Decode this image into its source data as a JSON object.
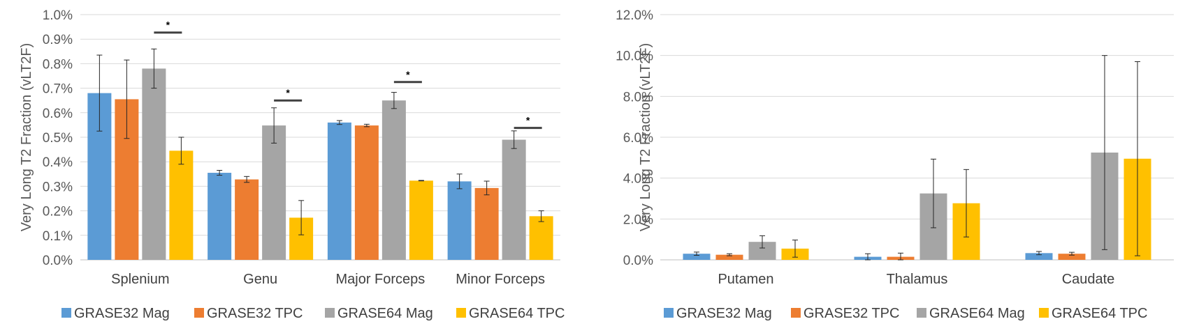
{
  "colors": {
    "grase32_mag": "#5B9BD5",
    "grase32_tpc": "#ED7D31",
    "grase64_mag": "#A5A5A5",
    "grase64_tpc": "#FFC000",
    "grid": "#D9D9D9",
    "axis": "#BFBFBF",
    "error": "#262626"
  },
  "chart_data": [
    {
      "type": "bar",
      "title": "",
      "ylabel": "Very Long T2 Fraction (vLT2F)",
      "xlabel": "",
      "ylim": [
        0,
        1.0
      ],
      "ytick_step": 0.1,
      "ytick_labels": [
        "0.0%",
        "0.1%",
        "0.2%",
        "0.3%",
        "0.4%",
        "0.5%",
        "0.6%",
        "0.7%",
        "0.8%",
        "0.9%",
        "1.0%"
      ],
      "categories": [
        "Splenium",
        "Genu",
        "Major Forceps",
        "Minor Forceps"
      ],
      "series": [
        {
          "name": "GRASE32 Mag",
          "values": [
            0.68,
            0.355,
            0.56,
            0.32
          ],
          "errors": [
            0.155,
            0.01,
            0.008,
            0.03
          ]
        },
        {
          "name": "GRASE32 TPC",
          "values": [
            0.655,
            0.328,
            0.548,
            0.293
          ],
          "errors": [
            0.16,
            0.012,
            0.005,
            0.028
          ]
        },
        {
          "name": "GRASE64 Mag",
          "values": [
            0.78,
            0.548,
            0.65,
            0.49
          ],
          "errors": [
            0.08,
            0.072,
            0.033,
            0.036
          ]
        },
        {
          "name": "GRASE64 TPC",
          "values": [
            0.445,
            0.172,
            0.323,
            0.178
          ],
          "errors": [
            0.055,
            0.07,
            0.001,
            0.022
          ]
        }
      ],
      "significance": [
        {
          "category": "Splenium",
          "label": "*",
          "level": 0.927
        },
        {
          "category": "Genu",
          "label": "*",
          "level": 0.65
        },
        {
          "category": "Major Forceps",
          "label": "*",
          "level": 0.725
        },
        {
          "category": "Minor Forceps",
          "label": "*",
          "level": 0.538
        }
      ]
    },
    {
      "type": "bar",
      "title": "",
      "ylabel": "Very Long T2 Fraction (vLT2F)",
      "xlabel": "",
      "ylim": [
        0,
        12.0
      ],
      "ytick_step": 2.0,
      "ytick_labels": [
        "0.0%",
        "2.0%",
        "4.0%",
        "6.0%",
        "8.0%",
        "10.0%",
        "12.0%"
      ],
      "categories": [
        "Putamen",
        "Thalamus",
        "Caudate"
      ],
      "series": [
        {
          "name": "GRASE32 Mag",
          "values": [
            0.3,
            0.15,
            0.33
          ],
          "errors": [
            0.08,
            0.15,
            0.08
          ]
        },
        {
          "name": "GRASE32 TPC",
          "values": [
            0.25,
            0.15,
            0.3
          ],
          "errors": [
            0.05,
            0.18,
            0.07
          ]
        },
        {
          "name": "GRASE64 Mag",
          "values": [
            0.88,
            3.25,
            5.25
          ],
          "errors": [
            0.3,
            1.68,
            4.75
          ]
        },
        {
          "name": "GRASE64 TPC",
          "values": [
            0.55,
            2.77,
            4.95
          ],
          "errors": [
            0.42,
            1.65,
            4.75
          ]
        }
      ]
    }
  ]
}
